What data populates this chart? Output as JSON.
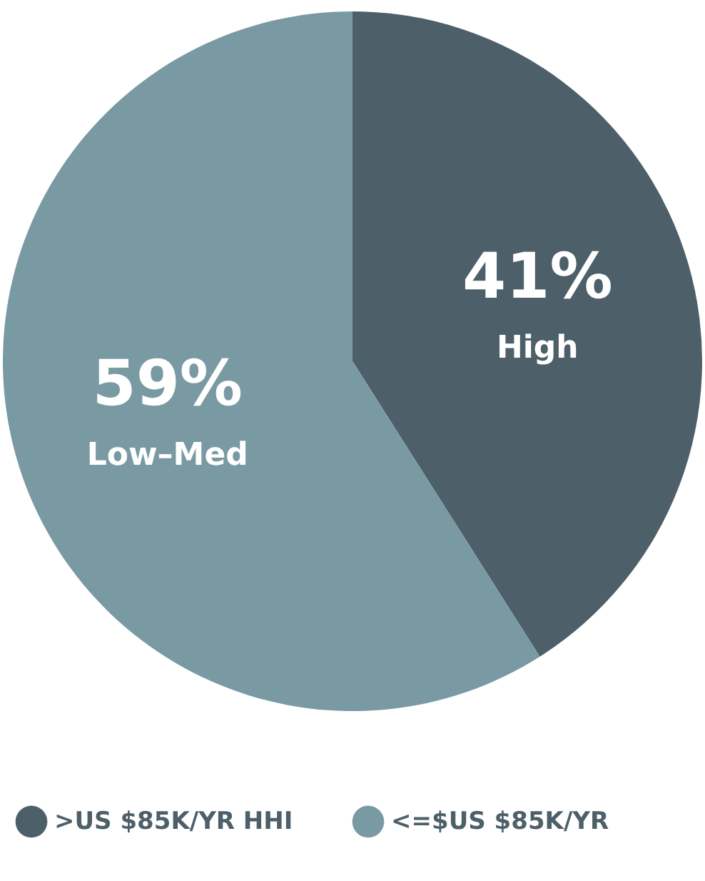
{
  "chart_data": {
    "type": "pie",
    "categories": [
      ">US $85K/YR HHI",
      "<=$US $85K/YR"
    ],
    "values": [
      41,
      59
    ],
    "colors": [
      "#4d5f69",
      "#7a9aa3"
    ],
    "value_labels": [
      "41%",
      "59%"
    ],
    "annotations": [
      "High",
      "Low–Med"
    ],
    "legend": "bottom"
  }
}
